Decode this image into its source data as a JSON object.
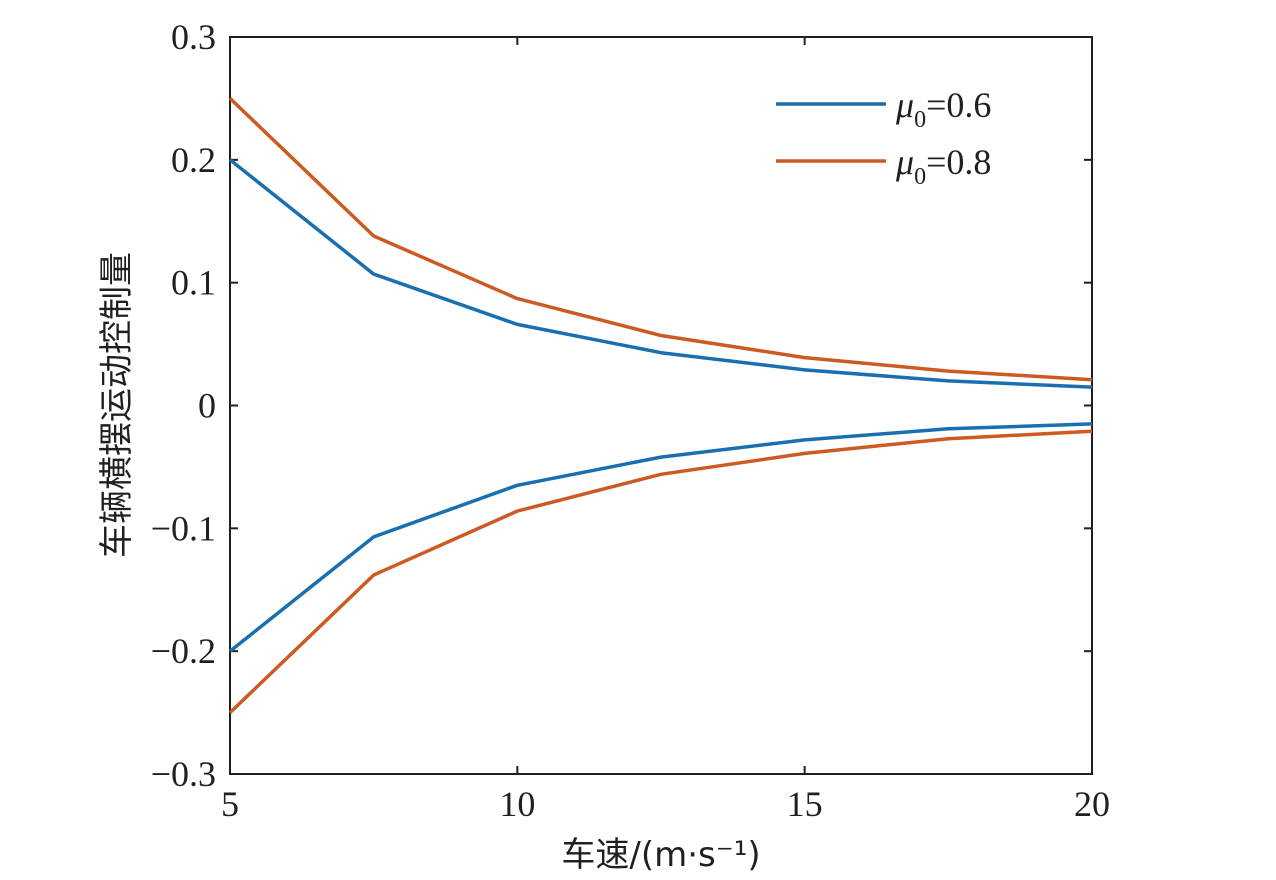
{
  "chart_data": {
    "type": "line",
    "xlabel": "车速/(m·s⁻¹)",
    "ylabel": "车辆横摆运动控制量",
    "xlim": [
      5,
      20
    ],
    "ylim": [
      -0.3,
      0.3
    ],
    "x_ticks": [
      5,
      10,
      15,
      20
    ],
    "x_tick_labels": [
      "5",
      "10",
      "15",
      "20"
    ],
    "y_ticks": [
      -0.3,
      -0.2,
      -0.1,
      0,
      0.1,
      0.2,
      0.3
    ],
    "y_tick_labels": [
      "−0.3",
      "−0.2",
      "−0.1",
      "0",
      "0.1",
      "0.2",
      "0.3"
    ],
    "grid": false,
    "legend_position": "top-right",
    "x": [
      5,
      7.5,
      10,
      12.5,
      15,
      17.5,
      20
    ],
    "series": [
      {
        "name": "μ0=0.6",
        "legend": {
          "symbol": "μ",
          "subscript": "0",
          "value": "=0.6"
        },
        "color": "#1a6faf",
        "upper": [
          0.2,
          0.107,
          0.066,
          0.043,
          0.029,
          0.02,
          0.015
        ],
        "lower": [
          -0.2,
          -0.107,
          -0.065,
          -0.042,
          -0.028,
          -0.019,
          -0.015
        ]
      },
      {
        "name": "μ0=0.8",
        "legend": {
          "symbol": "μ",
          "subscript": "0",
          "value": "=0.8"
        },
        "color": "#cc5a22",
        "upper": [
          0.25,
          0.138,
          0.087,
          0.057,
          0.039,
          0.028,
          0.021
        ],
        "lower": [
          -0.25,
          -0.138,
          -0.086,
          -0.056,
          -0.039,
          -0.027,
          -0.021
        ]
      }
    ]
  }
}
